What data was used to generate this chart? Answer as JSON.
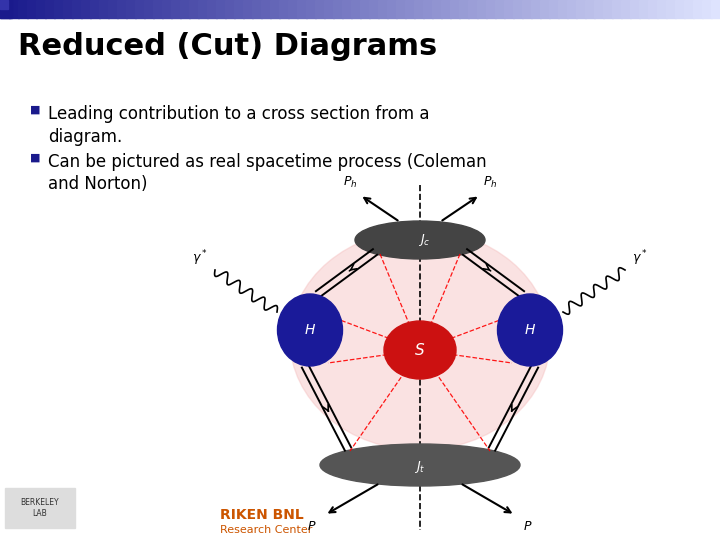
{
  "title": "Reduced (Cut) Diagrams",
  "bullet1_line1": "Leading contribution to a cross section from a",
  "bullet1_line2": "diagram.",
  "bullet2_line1": "Can be pictured as real spacetime process (Coleman",
  "bullet2_line2": "and Norton)",
  "title_fontsize": 22,
  "bullet_fontsize": 12,
  "background_color": "#ffffff",
  "title_color": "#000000",
  "bullet_color": "#000000",
  "bullet_marker_color": "#1a1a8c"
}
